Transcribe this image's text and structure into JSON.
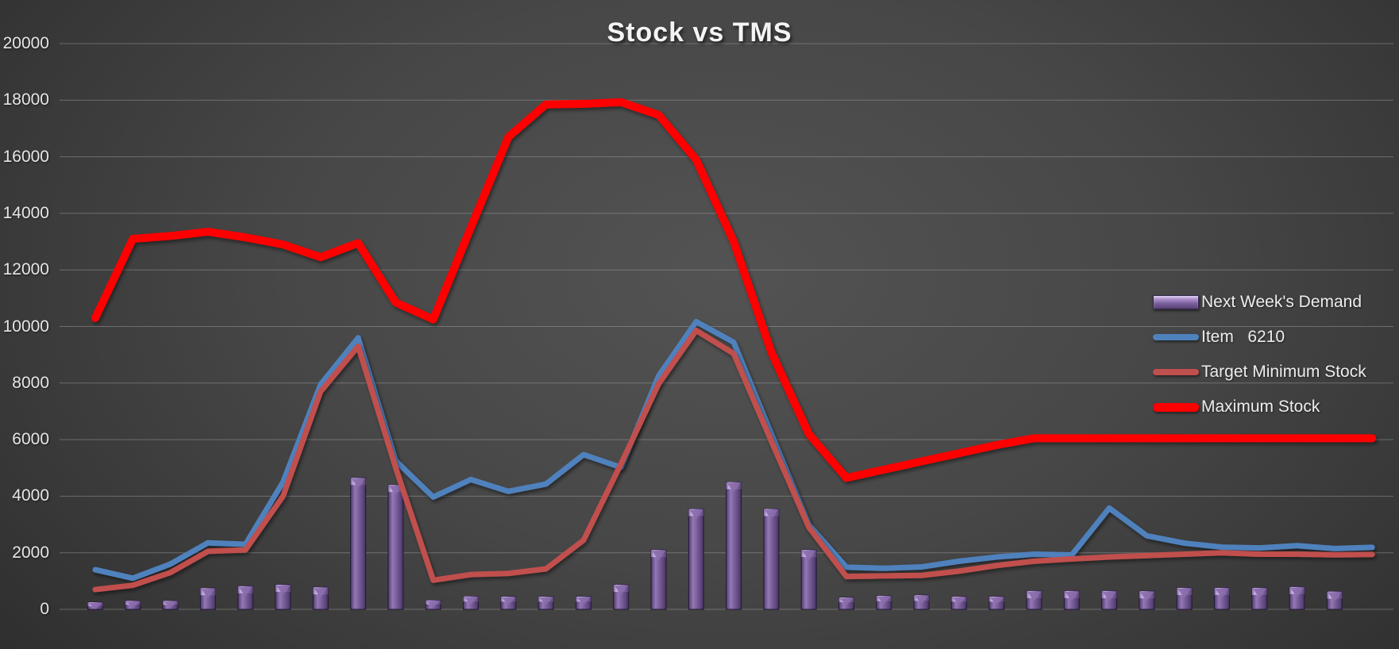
{
  "chart_data": {
    "type": "combo-bar-line",
    "title": "Stock vs TMS",
    "xlabel": "",
    "ylabel": "",
    "ylim": [
      0,
      20000
    ],
    "ytick_step": 2000,
    "yticks": [
      0,
      2000,
      4000,
      6000,
      8000,
      10000,
      12000,
      14000,
      16000,
      18000,
      20000
    ],
    "grid": "horizontal",
    "x_axis_labels": "none",
    "legend_position": "middle-right",
    "point_count": 35,
    "series": [
      {
        "name": "Next Week's Demand",
        "type": "bar",
        "color": "#7a5f9d",
        "values": [
          250,
          300,
          300,
          750,
          820,
          870,
          780,
          4650,
          4400,
          320,
          460,
          450,
          450,
          450,
          870,
          2100,
          3550,
          4500,
          3550,
          2100,
          420,
          480,
          500,
          450,
          450,
          650,
          650,
          650,
          640,
          760,
          760,
          760,
          790,
          630,
          null
        ]
      },
      {
        "name": "Item   6210",
        "type": "line",
        "color": "#4f81bd",
        "values": [
          1400,
          1100,
          1600,
          2350,
          2300,
          4500,
          7950,
          9600,
          5250,
          3970,
          4590,
          4170,
          4430,
          5470,
          5020,
          8250,
          10170,
          9440,
          6200,
          2990,
          1490,
          1450,
          1500,
          1700,
          1850,
          1950,
          1920,
          3580,
          2600,
          2340,
          2200,
          2170,
          2250,
          2150,
          2190
        ]
      },
      {
        "name": "Target Minimum Stock",
        "type": "line",
        "color": "#c0504d",
        "values": [
          700,
          850,
          1300,
          2050,
          2100,
          4000,
          7700,
          9300,
          5000,
          1030,
          1230,
          1270,
          1430,
          2440,
          5150,
          7970,
          9860,
          9040,
          5950,
          2900,
          1160,
          1180,
          1200,
          1350,
          1550,
          1700,
          1780,
          1850,
          1900,
          1950,
          2000,
          1950,
          1950,
          1930,
          1940
        ]
      },
      {
        "name": "Maximum Stock",
        "type": "line",
        "color": "#ff0000",
        "values": [
          10300,
          13100,
          13200,
          13350,
          13150,
          12900,
          12450,
          12950,
          10850,
          10250,
          13500,
          16700,
          17850,
          17870,
          17930,
          17480,
          15900,
          13000,
          9100,
          6200,
          4650,
          4940,
          5230,
          5520,
          5810,
          6050,
          6050,
          6050,
          6050,
          6050,
          6050,
          6050,
          6050,
          6050,
          6050
        ]
      }
    ]
  }
}
